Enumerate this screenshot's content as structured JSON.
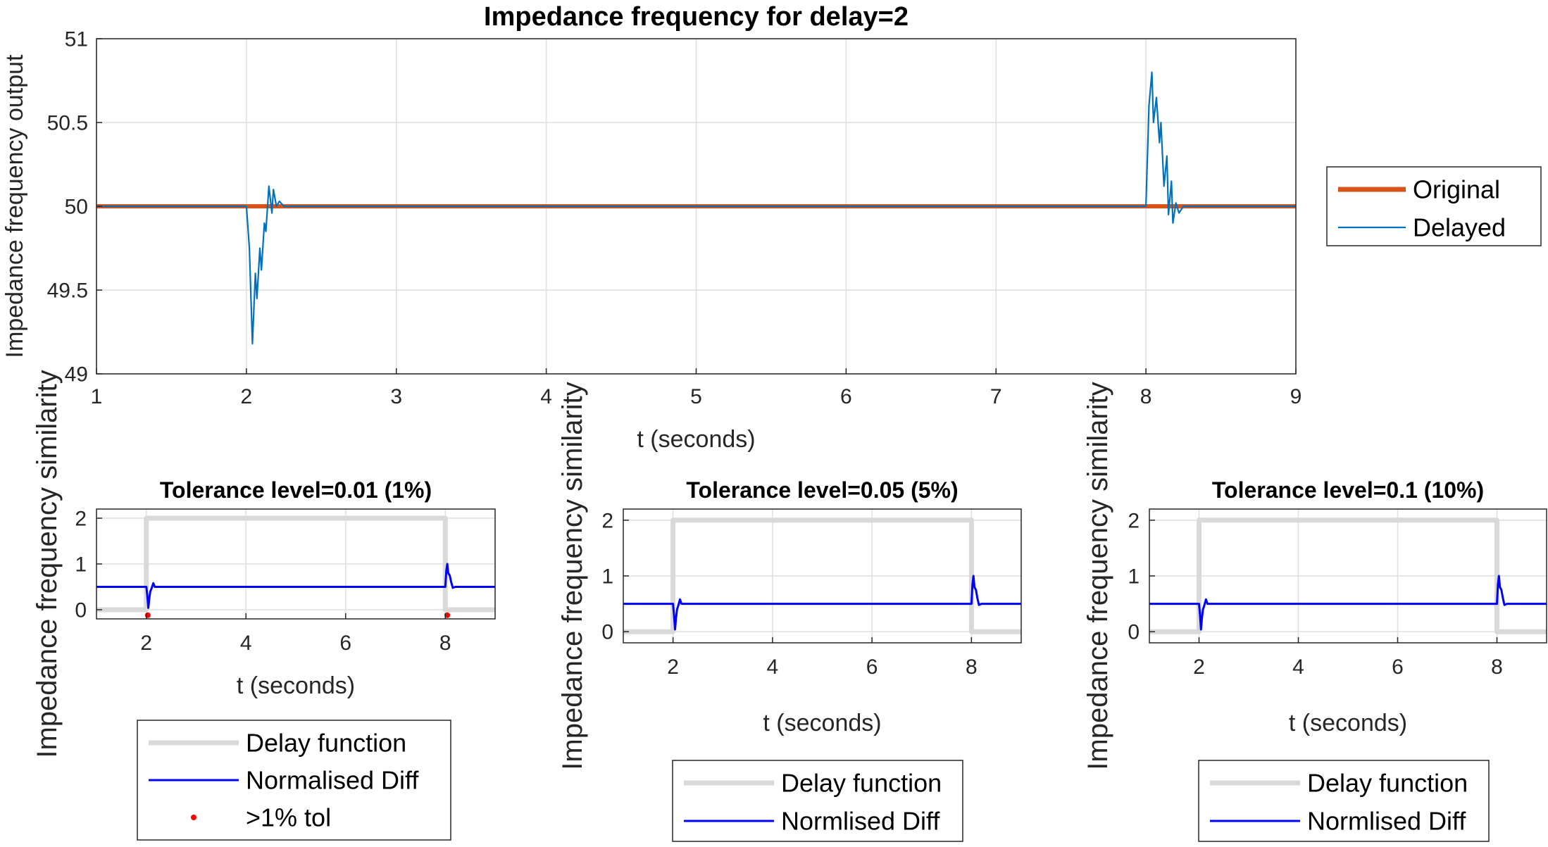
{
  "chart_data": [
    {
      "type": "line",
      "title": "Impedance frequency for delay=2",
      "xlabel": "t (seconds)",
      "ylabel": "Impedance frequency output",
      "xlim": [
        1,
        9
      ],
      "ylim": [
        49,
        51
      ],
      "xticks": [
        "1",
        "2",
        "3",
        "4",
        "5",
        "6",
        "7",
        "8",
        "9"
      ],
      "yticks": [
        "49",
        "49.5",
        "50",
        "50.5",
        "51"
      ],
      "grid": true,
      "legend_position": "outside-right",
      "series": [
        {
          "name": "Original",
          "color": "#D95319",
          "points": [
            [
              1,
              50
            ],
            [
              9,
              50
            ]
          ]
        },
        {
          "name": "Delayed",
          "color": "#0072BD",
          "points": [
            [
              1,
              50
            ],
            [
              2,
              50
            ],
            [
              2.02,
              49.75
            ],
            [
              2.04,
              49.18
            ],
            [
              2.06,
              49.6
            ],
            [
              2.07,
              49.45
            ],
            [
              2.09,
              49.75
            ],
            [
              2.1,
              49.62
            ],
            [
              2.12,
              49.9
            ],
            [
              2.13,
              49.85
            ],
            [
              2.15,
              50.12
            ],
            [
              2.17,
              49.96
            ],
            [
              2.18,
              50.1
            ],
            [
              2.2,
              50.0
            ],
            [
              2.22,
              50.03
            ],
            [
              2.25,
              50.0
            ],
            [
              8,
              50
            ],
            [
              8.02,
              50.6
            ],
            [
              8.04,
              50.8
            ],
            [
              8.05,
              50.5
            ],
            [
              8.07,
              50.65
            ],
            [
              8.09,
              50.38
            ],
            [
              8.1,
              50.5
            ],
            [
              8.12,
              50.12
            ],
            [
              8.14,
              50.3
            ],
            [
              8.15,
              49.95
            ],
            [
              8.17,
              50.15
            ],
            [
              8.18,
              49.9
            ],
            [
              8.2,
              50.02
            ],
            [
              8.22,
              49.96
            ],
            [
              8.25,
              50.0
            ],
            [
              9,
              50
            ]
          ]
        }
      ]
    },
    {
      "type": "line",
      "title": "Tolerance level=0.01 (1%)",
      "xlabel": "t (seconds)",
      "ylabel": "Impedance frequency similarity",
      "xlim": [
        1,
        9
      ],
      "ylim": [
        -0.2,
        2.2
      ],
      "xticks": [
        "2",
        "4",
        "6",
        "8"
      ],
      "yticks": [
        "0",
        "1",
        "2"
      ],
      "grid": true,
      "legend_position": "bottom",
      "series": [
        {
          "name": "Delay function",
          "color": "#D9D9D9",
          "points": [
            [
              1,
              0
            ],
            [
              2,
              0
            ],
            [
              2,
              2
            ],
            [
              8,
              2
            ],
            [
              8,
              0
            ],
            [
              9,
              0
            ]
          ]
        },
        {
          "name": "Normalised Diff",
          "color": "#0000FF",
          "points": [
            [
              1,
              0.5
            ],
            [
              2,
              0.5
            ],
            [
              2.02,
              0.3
            ],
            [
              2.04,
              0.04
            ],
            [
              2.06,
              0.25
            ],
            [
              2.08,
              0.4
            ],
            [
              2.1,
              0.45
            ],
            [
              2.14,
              0.58
            ],
            [
              2.17,
              0.5
            ],
            [
              8,
              0.5
            ],
            [
              8.02,
              0.85
            ],
            [
              8.04,
              1.0
            ],
            [
              8.06,
              0.8
            ],
            [
              8.09,
              0.75
            ],
            [
              8.12,
              0.6
            ],
            [
              8.15,
              0.48
            ],
            [
              8.2,
              0.5
            ],
            [
              9,
              0.5
            ]
          ]
        },
        {
          "name": ">1% tol",
          "color": "#FF0000",
          "marker": "dot",
          "points": [
            [
              2.03,
              -0.12
            ],
            [
              8.04,
              -0.12
            ]
          ]
        }
      ]
    },
    {
      "type": "line",
      "title": "Tolerance level=0.05 (5%)",
      "xlabel": "t (seconds)",
      "ylabel": "Impedance frequency similarity",
      "xlim": [
        1,
        9
      ],
      "ylim": [
        -0.2,
        2.2
      ],
      "xticks": [
        "2",
        "4",
        "6",
        "8"
      ],
      "yticks": [
        "0",
        "1",
        "2"
      ],
      "grid": true,
      "legend_position": "bottom",
      "series": [
        {
          "name": "Delay function",
          "color": "#D9D9D9",
          "points": [
            [
              1,
              0
            ],
            [
              2,
              0
            ],
            [
              2,
              2
            ],
            [
              8,
              2
            ],
            [
              8,
              0
            ],
            [
              9,
              0
            ]
          ]
        },
        {
          "name": "Normlised Diff",
          "color": "#0000FF",
          "points": [
            [
              1,
              0.5
            ],
            [
              2,
              0.5
            ],
            [
              2.02,
              0.3
            ],
            [
              2.04,
              0.04
            ],
            [
              2.06,
              0.25
            ],
            [
              2.08,
              0.4
            ],
            [
              2.1,
              0.45
            ],
            [
              2.14,
              0.58
            ],
            [
              2.17,
              0.5
            ],
            [
              8,
              0.5
            ],
            [
              8.02,
              0.85
            ],
            [
              8.04,
              1.0
            ],
            [
              8.06,
              0.8
            ],
            [
              8.09,
              0.75
            ],
            [
              8.12,
              0.6
            ],
            [
              8.15,
              0.48
            ],
            [
              8.2,
              0.5
            ],
            [
              9,
              0.5
            ]
          ]
        }
      ]
    },
    {
      "type": "line",
      "title": "Tolerance level=0.1 (10%)",
      "xlabel": "t (seconds)",
      "ylabel": "Impedance frequency similarity",
      "xlim": [
        1,
        9
      ],
      "ylim": [
        -0.2,
        2.2
      ],
      "xticks": [
        "2",
        "4",
        "6",
        "8"
      ],
      "yticks": [
        "0",
        "1",
        "2"
      ],
      "grid": true,
      "legend_position": "bottom",
      "series": [
        {
          "name": "Delay function",
          "color": "#D9D9D9",
          "points": [
            [
              1,
              0
            ],
            [
              2,
              0
            ],
            [
              2,
              2
            ],
            [
              8,
              2
            ],
            [
              8,
              0
            ],
            [
              9,
              0
            ]
          ]
        },
        {
          "name": "Normlised Diff",
          "color": "#0000FF",
          "points": [
            [
              1,
              0.5
            ],
            [
              2,
              0.5
            ],
            [
              2.02,
              0.3
            ],
            [
              2.04,
              0.04
            ],
            [
              2.06,
              0.25
            ],
            [
              2.08,
              0.4
            ],
            [
              2.1,
              0.45
            ],
            [
              2.14,
              0.58
            ],
            [
              2.17,
              0.5
            ],
            [
              8,
              0.5
            ],
            [
              8.02,
              0.85
            ],
            [
              8.04,
              1.0
            ],
            [
              8.06,
              0.8
            ],
            [
              8.09,
              0.75
            ],
            [
              8.12,
              0.6
            ],
            [
              8.15,
              0.48
            ],
            [
              8.2,
              0.5
            ],
            [
              9,
              0.5
            ]
          ]
        }
      ]
    }
  ]
}
